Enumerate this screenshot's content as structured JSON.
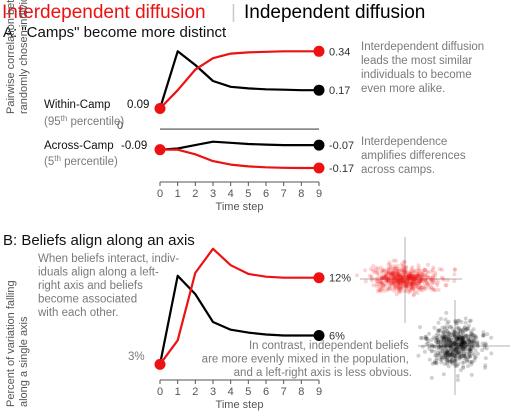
{
  "header": {
    "left": "Interdependent diffusion",
    "sep": "|",
    "right": "Independent diffusion",
    "left_color": "#ee1111",
    "right_color": "#000000",
    "sep_color": "#cccccc"
  },
  "y_axis_label_a": [
    "Pairwise correlation between",
    "randomly chosen individuals"
  ],
  "y_axis_label_b": [
    "Percent of variation falling",
    "along a single axis"
  ],
  "chart_data": [
    {
      "type": "line",
      "title": "A: \"Camps\" become more distinct",
      "x": [
        0,
        1,
        2,
        3,
        4,
        5,
        6,
        7,
        8,
        9
      ],
      "xlabel": "Time step",
      "ylim": [
        -0.24,
        0.42
      ],
      "zero_line_label": "0",
      "series": [
        {
          "group": "Within-Camp",
          "kind": "interdependent",
          "color": "#ee1111",
          "values": [
            0.09,
            0.17,
            0.26,
            0.31,
            0.33,
            0.335,
            0.338,
            0.34,
            0.34,
            0.34
          ],
          "end_label": "0.34"
        },
        {
          "group": "Within-Camp",
          "kind": "independent",
          "color": "#000000",
          "values": [
            0.09,
            0.34,
            0.28,
            0.21,
            0.185,
            0.178,
            0.174,
            0.172,
            0.17,
            0.17
          ],
          "end_label": "0.17"
        },
        {
          "group": "Across-Camp",
          "kind": "interdependent",
          "color": "#ee1111",
          "values": [
            -0.09,
            -0.09,
            -0.11,
            -0.14,
            -0.155,
            -0.163,
            -0.167,
            -0.169,
            -0.17,
            -0.17
          ],
          "end_label": "-0.17"
        },
        {
          "group": "Across-Camp",
          "kind": "independent",
          "color": "#000000",
          "values": [
            -0.09,
            -0.085,
            -0.07,
            -0.055,
            -0.06,
            -0.065,
            -0.068,
            -0.07,
            -0.07,
            -0.07
          ],
          "end_label": "-0.07"
        }
      ],
      "start_labels": [
        {
          "name": "Within-Camp",
          "value": "0.09",
          "note": "(95",
          "sup": "th",
          "note2": " percentile)"
        },
        {
          "name": "Across-Camp",
          "value": "-0.09",
          "note": "(5",
          "sup": "th",
          "note2": " percentile)"
        }
      ],
      "annotations": [
        [
          "Interdependent diffusion",
          "leads the most similar",
          "individuals to become",
          "even more alike."
        ],
        [
          "Interdependence",
          "amplifies differences",
          "across camps."
        ]
      ]
    },
    {
      "type": "line",
      "title": "B: Beliefs align along an axis",
      "x": [
        0,
        1,
        2,
        3,
        4,
        5,
        6,
        7,
        8,
        9
      ],
      "xlabel": "Time step",
      "ylim": [
        2,
        15.5
      ],
      "series": [
        {
          "kind": "interdependent",
          "color": "#ee1111",
          "values": [
            3,
            5.5,
            12.5,
            15,
            13.3,
            12.4,
            12.1,
            12,
            12,
            12
          ],
          "end_label": "12%"
        },
        {
          "kind": "independent",
          "color": "#000000",
          "values": [
            3,
            12.2,
            10.3,
            7.4,
            6.6,
            6.3,
            6.1,
            6,
            6,
            6
          ],
          "end_label": "6%"
        }
      ],
      "start_label": "3%",
      "annotations": [
        [
          "When beliefs interact, indiv-",
          "iduals align along a left-",
          "right axis and beliefs",
          "become associated",
          "with each other."
        ],
        [
          "In contrast, independent beliefs",
          "are more evenly mixed in the population,",
          "and a left-right axis is less obvious."
        ]
      ]
    }
  ]
}
